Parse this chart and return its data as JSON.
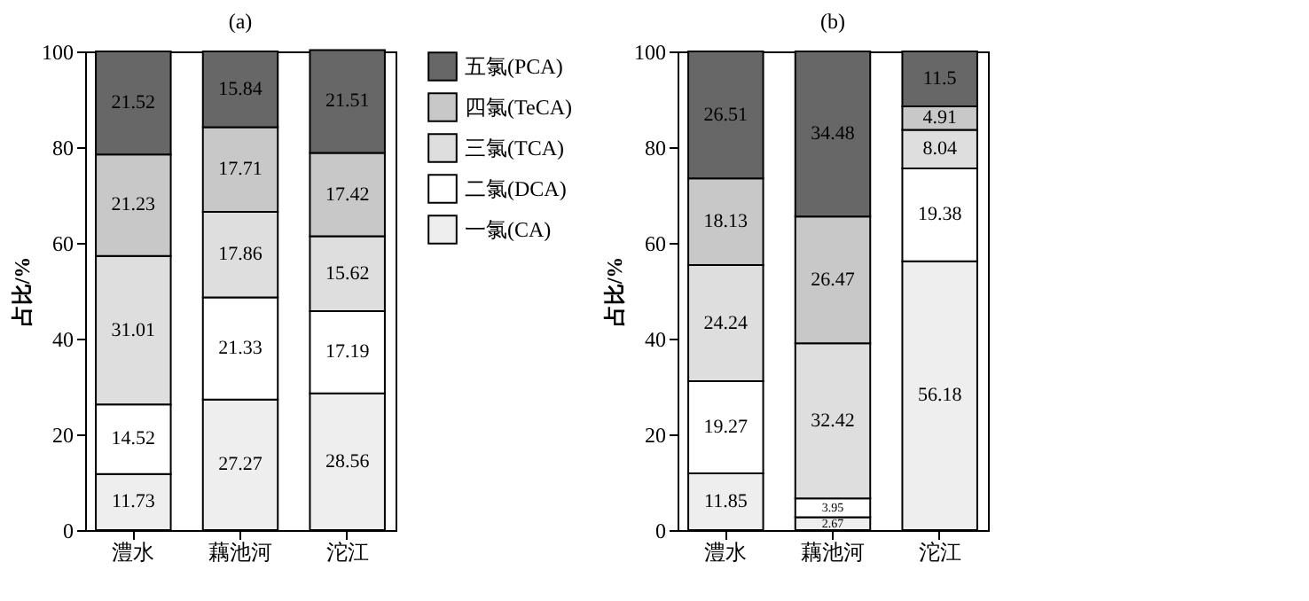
{
  "chart_data": [
    {
      "type": "bar",
      "title": "(a)",
      "ylabel": "占比/%",
      "categories": [
        "澧水",
        "藕池河",
        "沱江"
      ],
      "stacked": true,
      "data_labels": true,
      "ylim": [
        0,
        100
      ],
      "yticks": [
        0,
        20,
        40,
        60,
        80,
        100
      ],
      "grid": false,
      "legend": "top right",
      "series": [
        {
          "name": "一氯(CA)",
          "color": "#eeeeee",
          "values": [
            11.73,
            27.27,
            28.56
          ]
        },
        {
          "name": "二氯(DCA)",
          "color": "#ffffff",
          "values": [
            14.52,
            21.33,
            17.19
          ]
        },
        {
          "name": "三氯(TCA)",
          "color": "#dedede",
          "values": [
            31.01,
            17.86,
            15.62
          ]
        },
        {
          "name": "四氯(TeCA)",
          "color": "#c8c8c8",
          "values": [
            21.23,
            17.71,
            17.42
          ]
        },
        {
          "name": "五氯(PCA)",
          "color": "#676767",
          "values": [
            21.52,
            15.84,
            21.51
          ]
        }
      ]
    },
    {
      "type": "bar",
      "title": "(b)",
      "ylabel": "占比/%",
      "categories": [
        "澧水",
        "藕池河",
        "沱江"
      ],
      "stacked": true,
      "data_labels": true,
      "ylim": [
        0,
        100
      ],
      "yticks": [
        0,
        20,
        40,
        60,
        80,
        100
      ],
      "grid": false,
      "legend": false,
      "series": [
        {
          "color": "#eeeeee",
          "values": [
            11.85,
            2.67,
            56.18
          ]
        },
        {
          "color": "#ffffff",
          "values": [
            19.27,
            3.95,
            19.38
          ]
        },
        {
          "color": "#dedede",
          "values": [
            24.24,
            32.42,
            8.04
          ]
        },
        {
          "color": "#c8c8c8",
          "values": [
            18.13,
            26.47,
            4.91
          ]
        },
        {
          "color": "#676767",
          "values": [
            26.51,
            34.48,
            11.5
          ]
        }
      ]
    }
  ]
}
